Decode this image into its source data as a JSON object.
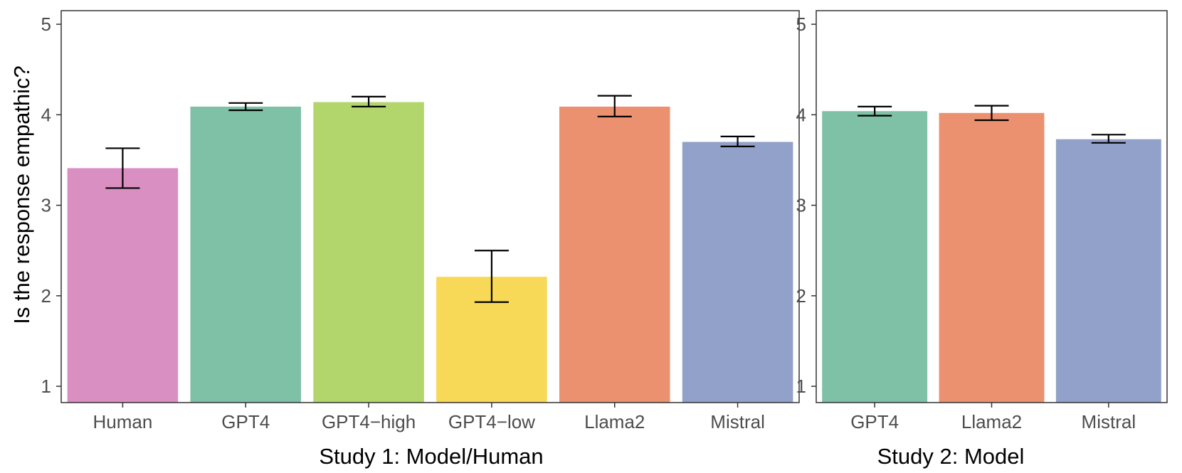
{
  "chart_data": [
    {
      "type": "bar",
      "xlabel": "Study 1: Model/Human",
      "ylabel": "Is the response empathic?",
      "ylim": [
        0.82,
        5.15
      ],
      "yticks": [
        1,
        2,
        3,
        4,
        5
      ],
      "categories": [
        "Human",
        "GPT4",
        "GPT4−high",
        "GPT4−low",
        "Llama2",
        "Mistral"
      ],
      "values": [
        3.41,
        4.09,
        4.14,
        2.21,
        4.09,
        3.7
      ],
      "error_low": [
        3.19,
        4.05,
        4.09,
        1.93,
        3.98,
        3.65
      ],
      "error_high": [
        3.63,
        4.13,
        4.2,
        2.5,
        4.21,
        3.76
      ],
      "colors": [
        "#d98fc1",
        "#7fc1a6",
        "#b2d66c",
        "#f8d957",
        "#ec9170",
        "#91a1c9"
      ],
      "grid": false
    },
    {
      "type": "bar",
      "xlabel": "Study 2: Model",
      "ylabel": "",
      "ylim": [
        0.82,
        5.15
      ],
      "yticks": [
        1,
        2,
        3,
        4,
        5
      ],
      "categories": [
        "GPT4",
        "Llama2",
        "Mistral"
      ],
      "values": [
        4.04,
        4.02,
        3.73
      ],
      "error_low": [
        3.99,
        3.94,
        3.69
      ],
      "error_high": [
        4.09,
        4.1,
        3.78
      ],
      "colors": [
        "#7fc1a6",
        "#ec9170",
        "#91a1c9"
      ],
      "grid": false
    }
  ]
}
